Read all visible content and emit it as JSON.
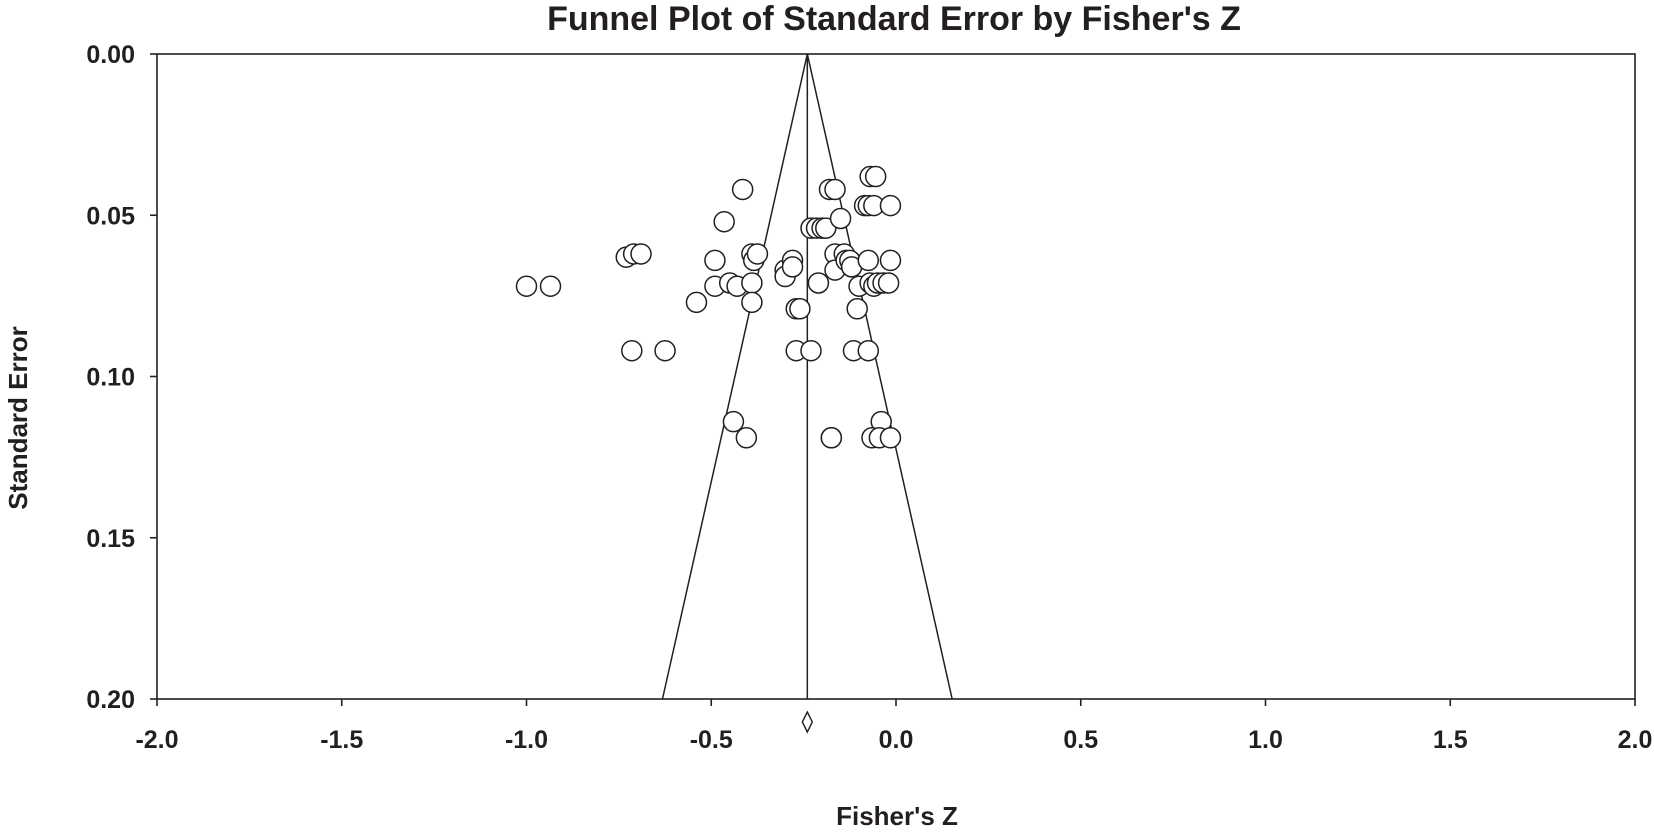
{
  "chart_data": {
    "type": "scatter",
    "title": "Funnel Plot of Standard Error by Fisher's Z",
    "xlabel": "Fisher's Z",
    "ylabel": "Standard Error",
    "xlim": [
      -2.0,
      2.0
    ],
    "ylim": [
      0.0,
      0.2
    ],
    "y_inverted": true,
    "x_ticks": [
      "-2.0",
      "-1.5",
      "-1.0",
      "-0.5",
      "0.0",
      "0.5",
      "1.0",
      "1.5",
      "2.0"
    ],
    "y_ticks": [
      "0.00",
      "0.05",
      "0.10",
      "0.15",
      "0.20"
    ],
    "grid": false,
    "legend": "none",
    "summary_effect": -0.24,
    "funnel_limits": {
      "se_max": 0.2,
      "z_at_se_max_left": -0.632,
      "z_at_se_max_right": 0.152
    },
    "points": [
      {
        "x": -1.0,
        "y": 0.072
      },
      {
        "x": -0.935,
        "y": 0.072
      },
      {
        "x": -0.73,
        "y": 0.063
      },
      {
        "x": -0.71,
        "y": 0.062
      },
      {
        "x": -0.69,
        "y": 0.062
      },
      {
        "x": -0.715,
        "y": 0.092
      },
      {
        "x": -0.625,
        "y": 0.092
      },
      {
        "x": -0.54,
        "y": 0.077
      },
      {
        "x": -0.49,
        "y": 0.072
      },
      {
        "x": -0.49,
        "y": 0.064
      },
      {
        "x": -0.465,
        "y": 0.052
      },
      {
        "x": -0.45,
        "y": 0.071
      },
      {
        "x": -0.43,
        "y": 0.072
      },
      {
        "x": -0.415,
        "y": 0.042
      },
      {
        "x": -0.39,
        "y": 0.062
      },
      {
        "x": -0.385,
        "y": 0.064
      },
      {
        "x": -0.375,
        "y": 0.062
      },
      {
        "x": -0.39,
        "y": 0.071
      },
      {
        "x": -0.39,
        "y": 0.077
      },
      {
        "x": -0.44,
        "y": 0.114
      },
      {
        "x": -0.405,
        "y": 0.119
      },
      {
        "x": -0.3,
        "y": 0.067
      },
      {
        "x": -0.3,
        "y": 0.069
      },
      {
        "x": -0.28,
        "y": 0.064
      },
      {
        "x": -0.28,
        "y": 0.066
      },
      {
        "x": -0.27,
        "y": 0.079
      },
      {
        "x": -0.26,
        "y": 0.079
      },
      {
        "x": -0.27,
        "y": 0.092
      },
      {
        "x": -0.23,
        "y": 0.092
      },
      {
        "x": -0.23,
        "y": 0.054
      },
      {
        "x": -0.215,
        "y": 0.054
      },
      {
        "x": -0.2,
        "y": 0.054
      },
      {
        "x": -0.19,
        "y": 0.054
      },
      {
        "x": -0.21,
        "y": 0.071
      },
      {
        "x": -0.18,
        "y": 0.042
      },
      {
        "x": -0.165,
        "y": 0.042
      },
      {
        "x": -0.15,
        "y": 0.051
      },
      {
        "x": -0.165,
        "y": 0.062
      },
      {
        "x": -0.165,
        "y": 0.067
      },
      {
        "x": -0.14,
        "y": 0.062
      },
      {
        "x": -0.135,
        "y": 0.064
      },
      {
        "x": -0.125,
        "y": 0.064
      },
      {
        "x": -0.12,
        "y": 0.066
      },
      {
        "x": -0.1,
        "y": 0.072
      },
      {
        "x": -0.105,
        "y": 0.079
      },
      {
        "x": -0.115,
        "y": 0.092
      },
      {
        "x": -0.07,
        "y": 0.038
      },
      {
        "x": -0.055,
        "y": 0.038
      },
      {
        "x": -0.085,
        "y": 0.047
      },
      {
        "x": -0.075,
        "y": 0.047
      },
      {
        "x": -0.06,
        "y": 0.047
      },
      {
        "x": -0.015,
        "y": 0.047
      },
      {
        "x": -0.075,
        "y": 0.064
      },
      {
        "x": -0.07,
        "y": 0.071
      },
      {
        "x": -0.06,
        "y": 0.072
      },
      {
        "x": -0.05,
        "y": 0.071
      },
      {
        "x": -0.035,
        "y": 0.071
      },
      {
        "x": -0.02,
        "y": 0.071
      },
      {
        "x": -0.015,
        "y": 0.064
      },
      {
        "x": -0.075,
        "y": 0.092
      },
      {
        "x": -0.04,
        "y": 0.114
      },
      {
        "x": -0.065,
        "y": 0.119
      },
      {
        "x": -0.045,
        "y": 0.119
      },
      {
        "x": -0.015,
        "y": 0.119
      },
      {
        "x": -0.175,
        "y": 0.119
      },
      {
        "x": -0.175,
        "y": 0.119
      }
    ]
  }
}
